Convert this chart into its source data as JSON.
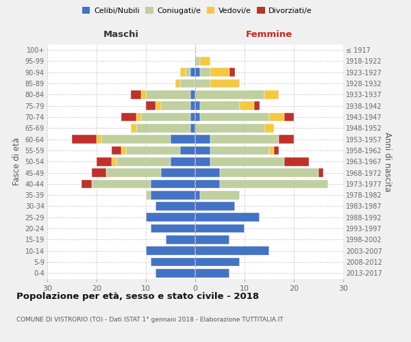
{
  "age_groups": [
    "0-4",
    "5-9",
    "10-14",
    "15-19",
    "20-24",
    "25-29",
    "30-34",
    "35-39",
    "40-44",
    "45-49",
    "50-54",
    "55-59",
    "60-64",
    "65-69",
    "70-74",
    "75-79",
    "80-84",
    "85-89",
    "90-94",
    "95-99",
    "100+"
  ],
  "birth_years": [
    "2013-2017",
    "2008-2012",
    "2003-2007",
    "1998-2002",
    "1993-1997",
    "1988-1992",
    "1983-1987",
    "1978-1982",
    "1973-1977",
    "1968-1972",
    "1963-1967",
    "1958-1962",
    "1953-1957",
    "1948-1952",
    "1943-1947",
    "1938-1942",
    "1933-1937",
    "1928-1932",
    "1923-1927",
    "1918-1922",
    "≤ 1917"
  ],
  "maschi": {
    "celibi": [
      8,
      9,
      10,
      6,
      9,
      10,
      8,
      9,
      9,
      7,
      5,
      3,
      5,
      1,
      1,
      1,
      1,
      0,
      1,
      0,
      0
    ],
    "coniugati": [
      0,
      0,
      0,
      0,
      0,
      0,
      0,
      1,
      12,
      11,
      11,
      11,
      14,
      11,
      10,
      6,
      9,
      3,
      1,
      0,
      0
    ],
    "vedovi": [
      0,
      0,
      0,
      0,
      0,
      0,
      0,
      0,
      0,
      0,
      1,
      1,
      1,
      1,
      1,
      1,
      1,
      1,
      1,
      0,
      0
    ],
    "divorziati": [
      0,
      0,
      0,
      0,
      0,
      0,
      0,
      0,
      2,
      3,
      3,
      2,
      5,
      0,
      3,
      2,
      2,
      0,
      0,
      0,
      0
    ]
  },
  "femmine": {
    "nubili": [
      7,
      9,
      15,
      7,
      10,
      13,
      8,
      1,
      5,
      5,
      3,
      3,
      3,
      0,
      1,
      1,
      0,
      0,
      1,
      0,
      0
    ],
    "coniugate": [
      0,
      0,
      0,
      0,
      0,
      0,
      0,
      8,
      22,
      20,
      15,
      12,
      14,
      14,
      14,
      8,
      14,
      3,
      2,
      1,
      0
    ],
    "vedove": [
      0,
      0,
      0,
      0,
      0,
      0,
      0,
      0,
      0,
      0,
      0,
      1,
      0,
      2,
      3,
      3,
      3,
      6,
      4,
      2,
      0
    ],
    "divorziate": [
      0,
      0,
      0,
      0,
      0,
      0,
      0,
      0,
      0,
      1,
      5,
      1,
      3,
      0,
      2,
      1,
      0,
      0,
      1,
      0,
      0
    ]
  },
  "colors": {
    "celibi": "#4472C4",
    "coniugati": "#BFCF9F",
    "vedovi": "#F5C842",
    "divorziati": "#C0312B"
  },
  "xlim": 30,
  "title": "Popolazione per età, sesso e stato civile - 2018",
  "subtitle": "COMUNE DI VISTRORIO (TO) - Dati ISTAT 1° gennaio 2018 - Elaborazione TUTTITALIA.IT",
  "xlabel_left": "Maschi",
  "xlabel_right": "Femmine",
  "ylabel": "Fasce di età",
  "ylabel_right": "Anni di nascita",
  "background_color": "#f0f0f0",
  "plot_background": "#ffffff"
}
